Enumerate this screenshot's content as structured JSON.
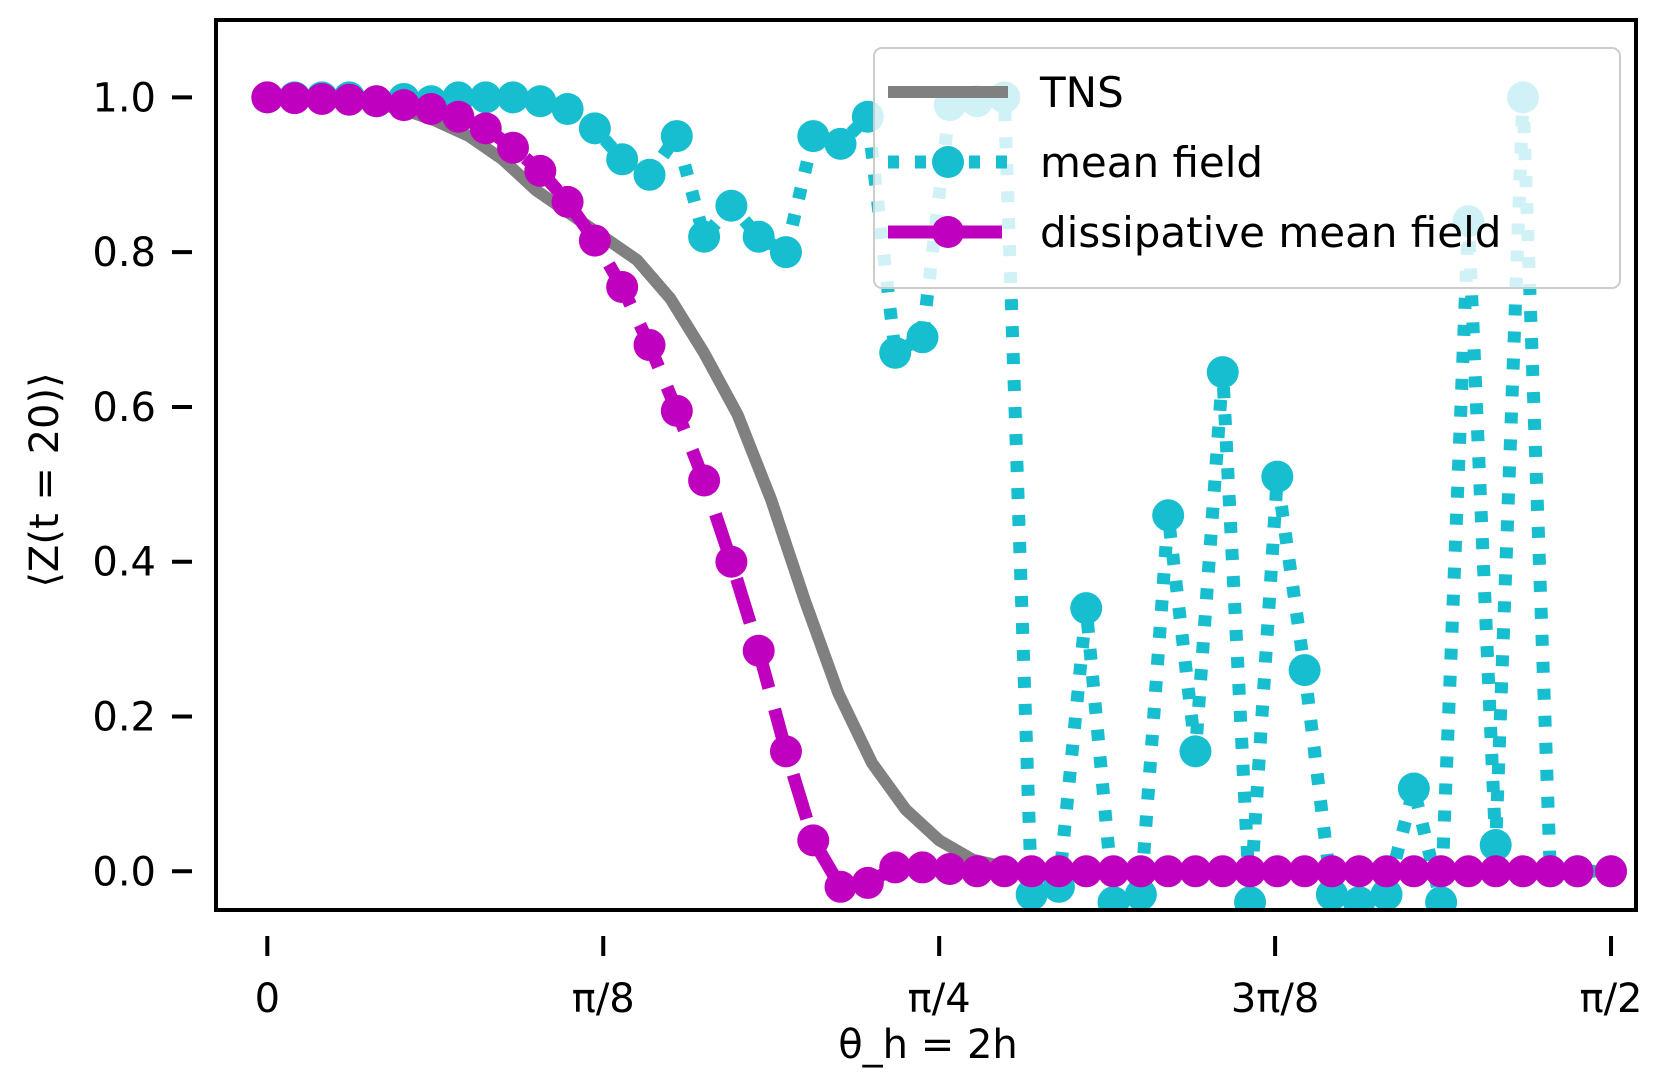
{
  "chart_data": {
    "type": "line",
    "xlabel": "θ_h = 2h",
    "ylabel": "⟨Z(t = 20)⟩",
    "xlim": [
      -0.06,
      1.6
    ],
    "ylim": [
      -0.05,
      1.1
    ],
    "x_ticks": [
      {
        "value": 0,
        "label": "0"
      },
      {
        "value": 0.3927,
        "label": "π/8"
      },
      {
        "value": 0.7854,
        "label": "π/4"
      },
      {
        "value": 1.1781,
        "label": "3π/8"
      },
      {
        "value": 1.5708,
        "label": "π/2"
      }
    ],
    "y_ticks": [
      {
        "value": 0.0,
        "label": "0.0"
      },
      {
        "value": 0.2,
        "label": "0.2"
      },
      {
        "value": 0.4,
        "label": "0.4"
      },
      {
        "value": 0.6,
        "label": "0.6"
      },
      {
        "value": 0.8,
        "label": "0.8"
      },
      {
        "value": 1.0,
        "label": "1.0"
      }
    ],
    "legend_position": "top-right",
    "series": [
      {
        "name": "TNS",
        "color": "#808080",
        "style": "solid",
        "markers": false,
        "x": [
          0.0,
          0.0393,
          0.0785,
          0.1178,
          0.1571,
          0.1963,
          0.2356,
          0.2749,
          0.3142,
          0.3534,
          0.3927,
          0.432,
          0.4712,
          0.5105,
          0.5498,
          0.589,
          0.6283,
          0.6676,
          0.7069,
          0.7461,
          0.7854,
          0.8247,
          0.8639,
          0.9032,
          0.9425,
          0.9817,
          1.021,
          1.0603,
          1.0996,
          1.1388,
          1.1781,
          1.2174,
          1.2566,
          1.2959,
          1.3352,
          1.3744,
          1.4137,
          1.453,
          1.4923,
          1.5315,
          1.5708
        ],
        "y": [
          1.0,
          0.999,
          0.997,
          0.993,
          0.985,
          0.97,
          0.95,
          0.92,
          0.88,
          0.85,
          0.82,
          0.79,
          0.74,
          0.67,
          0.59,
          0.48,
          0.35,
          0.23,
          0.14,
          0.08,
          0.04,
          0.015,
          0.005,
          0.001,
          0.0,
          0.0,
          0.0,
          0.0,
          0.0,
          0.0,
          0.0,
          0.0,
          0.0,
          0.0,
          0.0,
          0.0,
          0.0,
          0.0,
          0.0,
          0.0,
          0.0
        ]
      },
      {
        "name": "mean field",
        "color": "#17becf",
        "style": "dotted",
        "markers": true,
        "x": [
          0.0,
          0.0319,
          0.0638,
          0.0957,
          0.1276,
          0.1596,
          0.1915,
          0.2234,
          0.2553,
          0.2872,
          0.3191,
          0.351,
          0.3829,
          0.4148,
          0.4468,
          0.4787,
          0.5106,
          0.5425,
          0.5744,
          0.6063,
          0.6382,
          0.6701,
          0.702,
          0.734,
          0.7659,
          0.7978,
          0.8297,
          0.8616,
          0.8935,
          0.9254,
          0.9573,
          0.9892,
          1.0212,
          1.0531,
          1.085,
          1.1169,
          1.1488,
          1.1807,
          1.2126,
          1.2445,
          1.2764,
          1.3084,
          1.3403,
          1.3722,
          1.4041,
          1.436,
          1.4679,
          1.4998,
          1.5317,
          1.5708
        ],
        "y": [
          1.0,
          1.0,
          1.0,
          1.0,
          0.995,
          0.998,
          0.995,
          1.0,
          1.0,
          1.0,
          0.995,
          0.985,
          0.96,
          0.92,
          0.9,
          0.95,
          0.82,
          0.86,
          0.82,
          0.8,
          0.95,
          0.94,
          0.975,
          0.67,
          0.69,
          0.99,
          0.995,
          1.0,
          -0.03,
          -0.02,
          0.34,
          -0.04,
          -0.03,
          0.46,
          0.155,
          0.645,
          -0.04,
          0.51,
          0.26,
          -0.03,
          -0.04,
          -0.03,
          0.107,
          -0.04,
          0.84,
          0.034,
          1.0,
          0.0,
          0.0,
          0.0
        ]
      },
      {
        "name": "dissipative mean field",
        "color": "#bf00bf",
        "style": "dashed",
        "markers": true,
        "x": [
          0.0,
          0.0319,
          0.0638,
          0.0957,
          0.1276,
          0.1596,
          0.1915,
          0.2234,
          0.2553,
          0.2872,
          0.3191,
          0.351,
          0.3829,
          0.4148,
          0.4468,
          0.4787,
          0.5106,
          0.5425,
          0.5744,
          0.6063,
          0.6382,
          0.6701,
          0.702,
          0.734,
          0.7659,
          0.7978,
          0.8297,
          0.8616,
          0.8935,
          0.9254,
          0.9573,
          0.9892,
          1.0212,
          1.0531,
          1.085,
          1.1169,
          1.1488,
          1.1807,
          1.2126,
          1.2445,
          1.2764,
          1.3084,
          1.3403,
          1.3722,
          1.4041,
          1.436,
          1.4679,
          1.4998,
          1.5317,
          1.5708
        ],
        "y": [
          1.0,
          0.999,
          0.998,
          0.997,
          0.995,
          0.99,
          0.985,
          0.975,
          0.96,
          0.935,
          0.905,
          0.865,
          0.815,
          0.755,
          0.68,
          0.595,
          0.505,
          0.4,
          0.285,
          0.155,
          0.04,
          -0.02,
          -0.015,
          0.005,
          0.005,
          0.003,
          0.0,
          0.0,
          0.0,
          0.0,
          0.0,
          0.0,
          0.0,
          0.0,
          0.0,
          0.0,
          0.0,
          0.0,
          0.0,
          0.0,
          0.0,
          0.0,
          0.0,
          0.0,
          0.0,
          0.0,
          0.0,
          0.0,
          0.0,
          0.0
        ]
      }
    ]
  }
}
